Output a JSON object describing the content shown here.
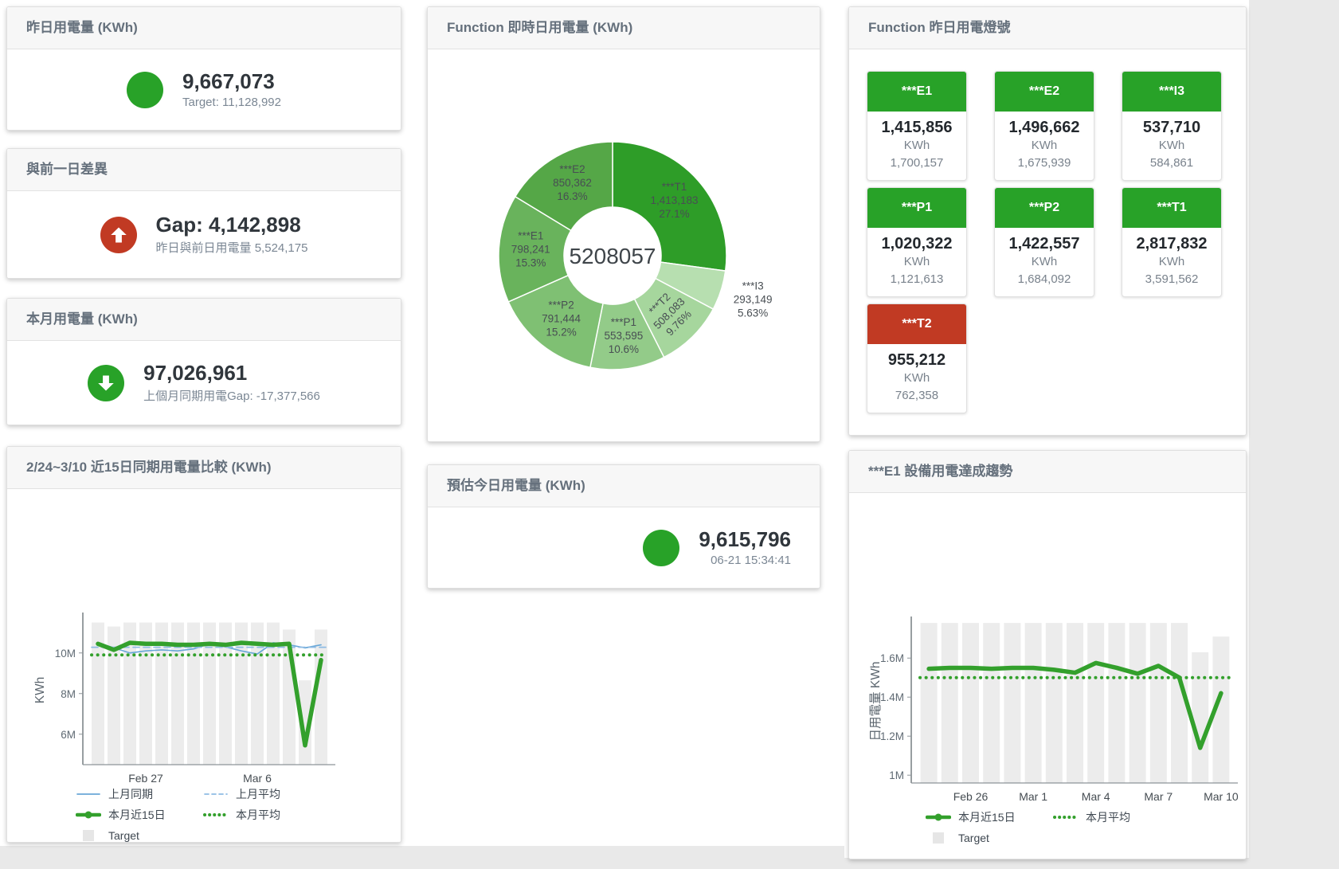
{
  "colors": {
    "green": "#28a228",
    "red": "#c13a23",
    "chart_green": "#33a02c",
    "chart_blue": "#69a8d8",
    "chart_blue_light": "#8fbce4",
    "bar_gray": "#ececec"
  },
  "cards": {
    "yesterday": {
      "title": "昨日用電量 (KWh)",
      "value": "9,667,073",
      "subtitle": "Target: 11,128,992",
      "status": "green"
    },
    "day_gap": {
      "title": "與前一日差異",
      "value": "Gap: 4,142,898",
      "subtitle": "昨日與前日用電量 5,524,175",
      "status": "red"
    },
    "month": {
      "title": "本月用電量 (KWh)",
      "value": "97,026,961",
      "subtitle": "上個月同期用電Gap: -17,377,566",
      "status": "green"
    },
    "estimate": {
      "title": "預估今日用電量 (KWh)",
      "value": "9,615,796",
      "subtitle": "06-21 15:34:41",
      "status": "green"
    },
    "realtime_donut": {
      "title": "Function 即時日用電量 (KWh)"
    },
    "lights": {
      "title": "Function 昨日用電燈號"
    },
    "compare": {
      "title": "2/24~3/10 近15日同期用電量比較 (KWh)"
    },
    "trend": {
      "title": "***E1 設備用電達成趨勢"
    }
  },
  "lights_tiles": [
    {
      "name": "***E1",
      "value": "1,415,856",
      "unit": "KWh",
      "target": "1,700,157",
      "status": "green"
    },
    {
      "name": "***E2",
      "value": "1,496,662",
      "unit": "KWh",
      "target": "1,675,939",
      "status": "green"
    },
    {
      "name": "***I3",
      "value": "537,710",
      "unit": "KWh",
      "target": "584,861",
      "status": "green"
    },
    {
      "name": "***P1",
      "value": "1,020,322",
      "unit": "KWh",
      "target": "1,121,613",
      "status": "green"
    },
    {
      "name": "***P2",
      "value": "1,422,557",
      "unit": "KWh",
      "target": "1,684,092",
      "status": "green"
    },
    {
      "name": "***T1",
      "value": "2,817,832",
      "unit": "KWh",
      "target": "3,591,562",
      "status": "green"
    },
    {
      "name": "***T2",
      "value": "955,212",
      "unit": "KWh",
      "target": "762,358",
      "status": "red"
    }
  ],
  "chart_data": [
    {
      "id": "donut",
      "type": "pie",
      "title": "Function 即時日用電量 (KWh)",
      "center_label": "5208057",
      "slices": [
        {
          "name": "***T1",
          "value": "1,413,183",
          "value_num": 1413183,
          "share": 27.1,
          "pct": "27.1%",
          "color": "#2e9d28"
        },
        {
          "name": "***I3",
          "value": "293,149",
          "value_num": 293149,
          "share": 5.63,
          "pct": "5.63%",
          "color": "#b7dfb0",
          "label_outside": true
        },
        {
          "name": "***T2",
          "value": "508,083",
          "value_num": 508083,
          "share": 9.76,
          "pct": "9.76%",
          "color": "#a6d69d",
          "label_rotate": -45
        },
        {
          "name": "***P1",
          "value": "553,595",
          "value_num": 553595,
          "share": 10.6,
          "pct": "10.6%",
          "color": "#93cb89"
        },
        {
          "name": "***P2",
          "value": "791,444",
          "value_num": 791444,
          "share": 15.2,
          "pct": "15.2%",
          "color": "#7fc073"
        },
        {
          "name": "***E1",
          "value": "798,241",
          "value_num": 798241,
          "share": 15.3,
          "pct": "15.3%",
          "color": "#69b35c"
        },
        {
          "name": "***E2",
          "value": "850,362",
          "value_num": 850362,
          "share": 16.3,
          "pct": "16.3%",
          "color": "#55a747"
        }
      ]
    },
    {
      "id": "compare",
      "type": "line",
      "title": "2/24~3/10 近15日同期用電量比較 (KWh)",
      "ylabel": "KWh",
      "unit": "M",
      "x_count": 15,
      "x_ticks": [
        {
          "index": 3,
          "label": "Feb 27"
        },
        {
          "index": 10,
          "label": "Mar 6"
        }
      ],
      "yticks": [
        {
          "v": 6,
          "label": "6M"
        },
        {
          "v": 8,
          "label": "8M"
        },
        {
          "v": 10,
          "label": "10M"
        }
      ],
      "ylim": [
        4.5,
        11.6
      ],
      "legend": [
        "上月同期",
        "上月平均",
        "本月近15日",
        "本月平均",
        "Target"
      ],
      "series": [
        {
          "name": "Target",
          "type": "bar",
          "color": "#ececec",
          "values": [
            11.5,
            11.3,
            11.5,
            11.5,
            11.5,
            11.5,
            11.5,
            11.5,
            11.5,
            11.5,
            11.5,
            11.5,
            11.15,
            8.65,
            11.15
          ]
        },
        {
          "name": "上月同期",
          "type": "line",
          "style": "solid",
          "color": "#69a8d8",
          "width": 1.7,
          "values": [
            10.5,
            10.25,
            10.0,
            10.1,
            10.15,
            10.1,
            10.2,
            10.45,
            10.3,
            10.1,
            9.95,
            10.5,
            10.4,
            10.25,
            10.4
          ]
        },
        {
          "name": "上月平均",
          "type": "line",
          "style": "dashed",
          "color": "#8fbce4",
          "width": 1.7,
          "values": 10.28
        },
        {
          "name": "本月平均",
          "type": "line",
          "style": "dotted",
          "color": "#33a02c",
          "width": 4,
          "values": 9.9
        },
        {
          "name": "本月近15日",
          "type": "line",
          "style": "solid",
          "color": "#33a02c",
          "width": 5.5,
          "values": [
            10.45,
            10.15,
            10.5,
            10.45,
            10.45,
            10.4,
            10.4,
            10.45,
            10.4,
            10.5,
            10.45,
            10.4,
            10.45,
            5.45,
            9.65
          ]
        }
      ]
    },
    {
      "id": "trend",
      "type": "line",
      "title": "***E1 設備用電達成趨勢",
      "ylabel": "日用電量 KWh",
      "unit": "M",
      "x_count": 15,
      "x_ticks": [
        {
          "index": 2,
          "label": "Feb 26"
        },
        {
          "index": 5,
          "label": "Mar 1"
        },
        {
          "index": 8,
          "label": "Mar 4"
        },
        {
          "index": 11,
          "label": "Mar 7"
        },
        {
          "index": 14,
          "label": "Mar 10"
        }
      ],
      "yticks": [
        {
          "v": 1,
          "label": "1M"
        },
        {
          "v": 1.2,
          "label": "1.2M"
        },
        {
          "v": 1.4,
          "label": "1.4M"
        },
        {
          "v": 1.6,
          "label": "1.6M"
        }
      ],
      "ylim": [
        0.96,
        1.78
      ],
      "legend": [
        "本月近15日",
        "本月平均",
        "Target"
      ],
      "series": [
        {
          "name": "Target",
          "type": "bar",
          "color": "#ececec",
          "values": [
            1.78,
            1.78,
            1.78,
            1.78,
            1.78,
            1.78,
            1.78,
            1.78,
            1.78,
            1.78,
            1.78,
            1.78,
            1.78,
            1.63,
            1.71
          ]
        },
        {
          "name": "本月平均",
          "type": "line",
          "style": "dotted",
          "color": "#33a02c",
          "width": 4,
          "values": 1.5
        },
        {
          "name": "本月近15日",
          "type": "line",
          "style": "solid",
          "color": "#33a02c",
          "width": 5.5,
          "values": [
            1.545,
            1.55,
            1.55,
            1.545,
            1.55,
            1.55,
            1.54,
            1.525,
            1.575,
            1.55,
            1.52,
            1.56,
            1.5,
            1.14,
            1.42
          ]
        }
      ]
    }
  ]
}
